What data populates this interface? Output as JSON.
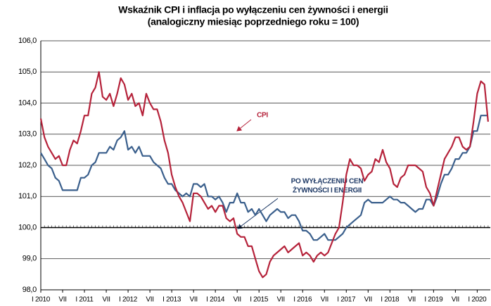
{
  "chart_data": {
    "type": "line",
    "title": "Wskaźnik CPI i inflacja po wyłączeniu cen żywności i energii",
    "subtitle": "(analogiczny miesiąc poprzedniego roku = 100)",
    "categories": [
      "I 2010",
      null,
      null,
      null,
      null,
      null,
      "VII",
      null,
      null,
      null,
      null,
      null,
      "I 2011",
      null,
      null,
      null,
      null,
      null,
      "VII",
      null,
      null,
      null,
      null,
      null,
      "I 2012",
      null,
      null,
      null,
      null,
      null,
      "VII",
      null,
      null,
      null,
      null,
      null,
      "I 2013",
      null,
      null,
      null,
      null,
      null,
      "VII",
      null,
      null,
      null,
      null,
      null,
      "I 2014",
      null,
      null,
      null,
      null,
      null,
      "VII",
      null,
      null,
      null,
      null,
      null,
      "I 2015",
      null,
      null,
      null,
      null,
      null,
      "VII",
      null,
      null,
      null,
      null,
      null,
      "I 2016",
      null,
      null,
      null,
      null,
      null,
      "VII",
      null,
      null,
      null,
      null,
      null,
      "I 2017",
      null,
      null,
      null,
      null,
      null,
      "VII",
      null,
      null,
      null,
      null,
      null,
      "I 2018",
      null,
      null,
      null,
      null,
      null,
      "VII",
      null,
      null,
      null,
      null,
      null,
      "I 2019",
      null,
      null,
      null,
      null,
      null,
      "VII",
      null,
      null,
      null,
      null,
      null,
      "I 2020",
      null,
      null,
      null
    ],
    "series": [
      {
        "name": "CPI",
        "color": "#b5223a",
        "values": [
          103.5,
          102.9,
          102.6,
          102.4,
          102.2,
          102.3,
          102.0,
          102.0,
          102.5,
          102.8,
          102.7,
          103.1,
          103.6,
          103.6,
          104.3,
          104.5,
          105.0,
          104.2,
          104.1,
          104.3,
          103.9,
          104.3,
          104.8,
          104.6,
          104.1,
          104.3,
          103.9,
          104.0,
          103.6,
          104.3,
          104.0,
          103.8,
          103.8,
          103.4,
          102.8,
          102.4,
          101.7,
          101.3,
          101.0,
          100.8,
          100.5,
          100.2,
          101.1,
          101.1,
          101.0,
          100.8,
          100.6,
          100.7,
          100.5,
          100.7,
          100.7,
          100.3,
          100.2,
          100.3,
          99.8,
          99.7,
          99.7,
          99.4,
          99.4,
          99.0,
          98.6,
          98.4,
          98.5,
          98.9,
          99.1,
          99.2,
          99.3,
          99.4,
          99.2,
          99.3,
          99.4,
          99.5,
          99.1,
          99.2,
          99.1,
          98.9,
          99.1,
          99.2,
          99.1,
          99.2,
          99.5,
          99.8,
          100.0,
          100.8,
          101.7,
          102.2,
          102.0,
          102.0,
          101.9,
          101.5,
          101.7,
          101.8,
          102.2,
          102.1,
          102.5,
          102.1,
          101.9,
          101.4,
          101.3,
          101.6,
          101.7,
          102.0,
          102.0,
          102.0,
          101.9,
          101.8,
          101.3,
          101.1,
          100.7,
          101.2,
          101.7,
          102.2,
          102.4,
          102.6,
          102.9,
          102.9,
          102.6,
          102.5,
          102.6,
          103.4,
          104.3,
          104.7,
          104.6,
          103.4
        ]
      },
      {
        "name": "PO WYŁĄCZENIU CEN ŻYWNOŚCI I ENERGII",
        "color": "#3a5f8c",
        "values": [
          102.4,
          102.2,
          102.0,
          101.9,
          101.6,
          101.5,
          101.2,
          101.2,
          101.2,
          101.2,
          101.2,
          101.6,
          101.6,
          101.7,
          102.0,
          102.1,
          102.4,
          102.4,
          102.4,
          102.6,
          102.5,
          102.8,
          102.9,
          103.1,
          102.5,
          102.6,
          102.4,
          102.6,
          102.3,
          102.3,
          102.3,
          102.1,
          102.0,
          101.9,
          101.6,
          101.4,
          101.4,
          101.2,
          101.1,
          101.0,
          101.1,
          101.0,
          101.4,
          101.4,
          101.3,
          101.4,
          101.0,
          101.0,
          100.9,
          101.0,
          100.8,
          100.5,
          100.8,
          100.8,
          101.1,
          100.8,
          100.8,
          100.5,
          100.6,
          100.4,
          100.6,
          100.4,
          100.2,
          100.4,
          100.5,
          100.6,
          100.5,
          100.5,
          100.3,
          100.4,
          100.4,
          100.2,
          99.9,
          99.9,
          99.8,
          99.6,
          99.6,
          99.7,
          99.8,
          99.6,
          99.6,
          99.6,
          99.7,
          99.8,
          100.0,
          100.1,
          100.2,
          100.3,
          100.4,
          100.8,
          100.9,
          100.8,
          100.8,
          100.8,
          100.8,
          100.9,
          101.0,
          100.9,
          100.9,
          100.8,
          100.8,
          100.7,
          100.6,
          100.5,
          100.6,
          100.6,
          100.9,
          100.9,
          100.7,
          101.0,
          101.4,
          101.7,
          101.7,
          101.9,
          102.2,
          102.2,
          102.4,
          102.4,
          102.6,
          103.1,
          103.1,
          103.6,
          103.6,
          103.6
        ]
      }
    ],
    "annotations": [
      "CPI",
      "PO WYŁĄCZENIU CEN",
      "ŻYWNOŚCI I ENERGII"
    ],
    "ylim": [
      98,
      106
    ],
    "yticks": [
      {
        "value": 98,
        "label": "98,0"
      },
      {
        "value": 99,
        "label": "99,0"
      },
      {
        "value": 100,
        "label": "100,0"
      },
      {
        "value": 101,
        "label": "101,0"
      },
      {
        "value": 102,
        "label": "102,0"
      },
      {
        "value": 103,
        "label": "103,0"
      },
      {
        "value": 104,
        "label": "104,0"
      },
      {
        "value": 105,
        "label": "105,0"
      },
      {
        "value": 106,
        "label": "106,0"
      }
    ],
    "grid": true
  }
}
